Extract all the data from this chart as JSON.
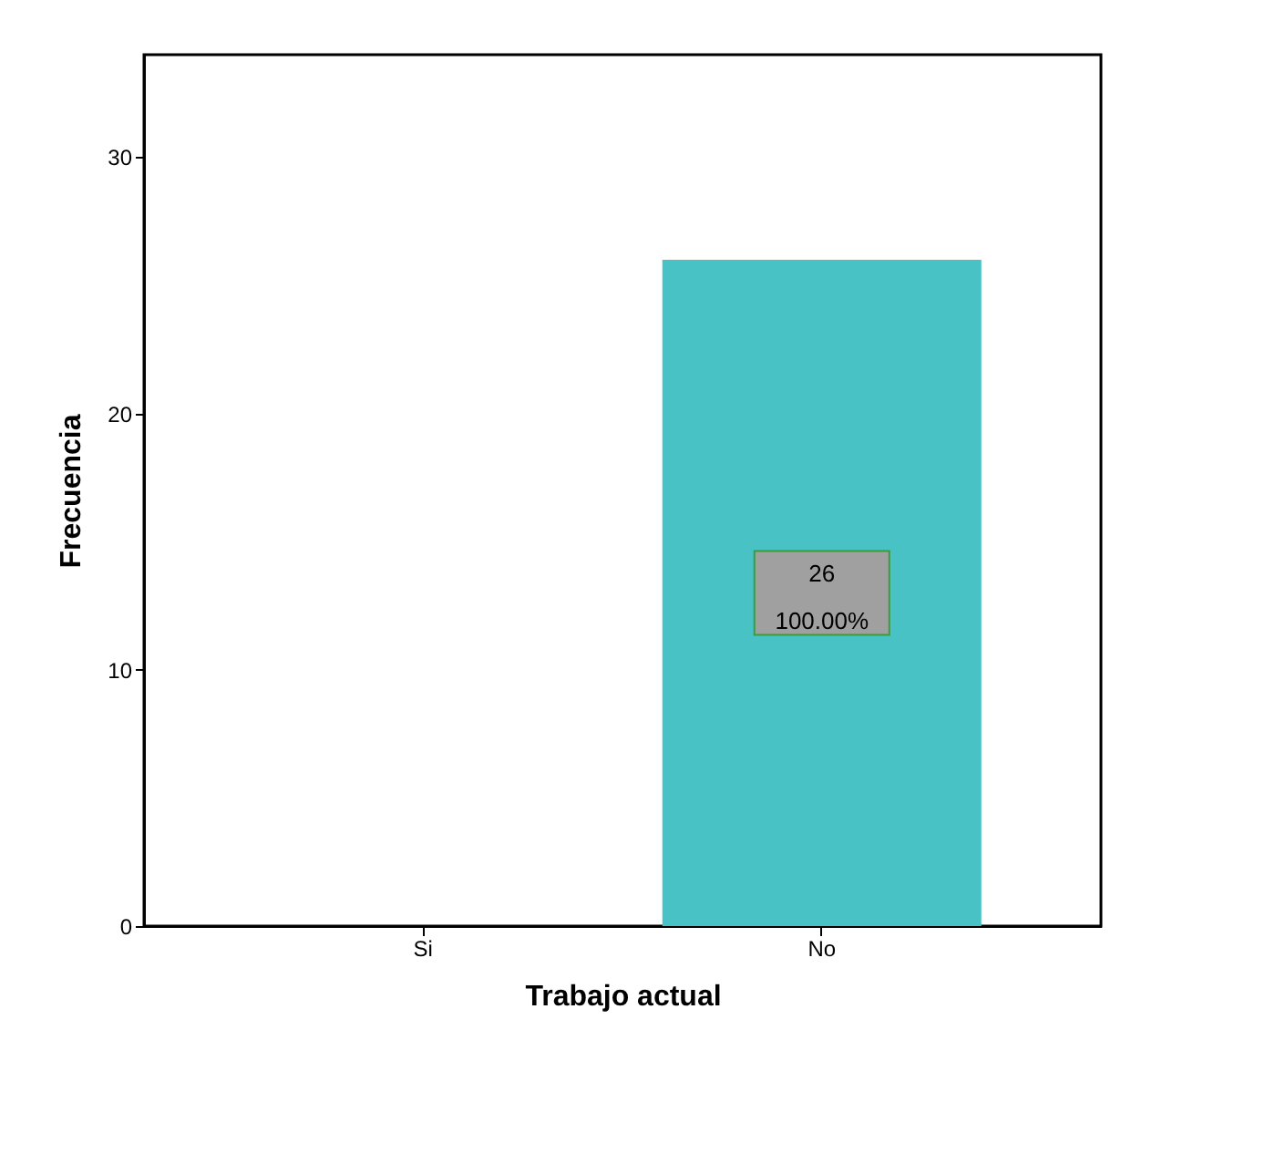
{
  "chart_data": {
    "type": "bar",
    "xlabel": "Trabajo actual",
    "ylabel": "Frecuencia",
    "categories": [
      "Si",
      "No"
    ],
    "values": [
      0,
      26
    ],
    "value_labels": [
      null,
      "26"
    ],
    "annotations": [
      "100.00%"
    ],
    "color": "#48c2c5",
    "ylim": [
      0,
      34
    ],
    "yticks": [
      0,
      10,
      20,
      30
    ],
    "grid": false
  }
}
